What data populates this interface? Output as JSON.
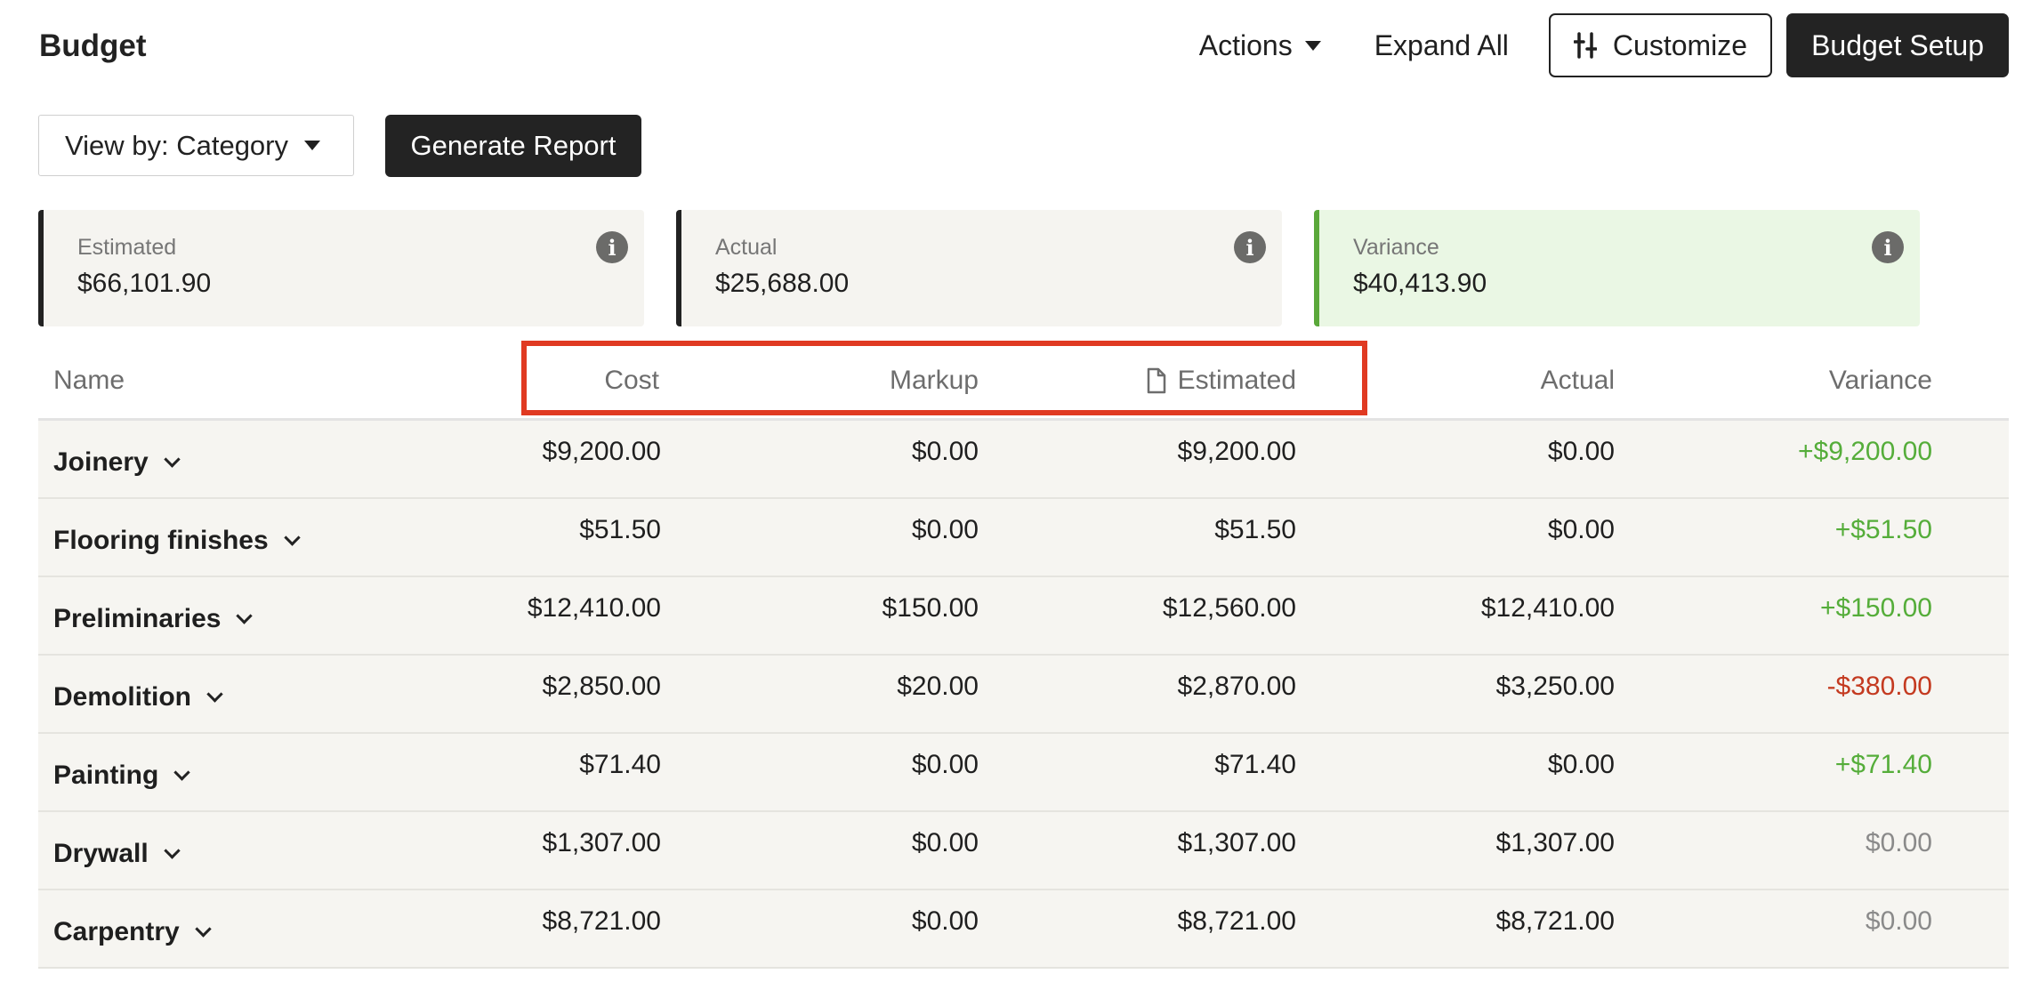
{
  "header": {
    "title": "Budget",
    "actions_label": "Actions",
    "expand_all_label": "Expand All",
    "customize_label": "Customize",
    "budget_setup_label": "Budget Setup"
  },
  "toolbar": {
    "view_by_label": "View by: Category",
    "generate_report_label": "Generate Report"
  },
  "summary": {
    "estimated": {
      "label": "Estimated",
      "value": "$66,101.90"
    },
    "actual": {
      "label": "Actual",
      "value": "$25,688.00"
    },
    "variance": {
      "label": "Variance",
      "value": "$40,413.90"
    }
  },
  "colors": {
    "positive": "#55ad3a",
    "negative": "#c43a20",
    "neutral": "#8a8a8a",
    "highlight_box": "#e03a22"
  },
  "table": {
    "columns": {
      "name": "Name",
      "cost": "Cost",
      "markup": "Markup",
      "estimated": "Estimated",
      "actual": "Actual",
      "variance": "Variance"
    },
    "rows": [
      {
        "name": "Joinery",
        "cost": "$9,200.00",
        "markup": "$0.00",
        "estimated": "$9,200.00",
        "actual": "$0.00",
        "variance": "+$9,200.00",
        "variance_status": "positive"
      },
      {
        "name": "Flooring finishes",
        "cost": "$51.50",
        "markup": "$0.00",
        "estimated": "$51.50",
        "actual": "$0.00",
        "variance": "+$51.50",
        "variance_status": "positive"
      },
      {
        "name": "Preliminaries",
        "cost": "$12,410.00",
        "markup": "$150.00",
        "estimated": "$12,560.00",
        "actual": "$12,410.00",
        "variance": "+$150.00",
        "variance_status": "positive"
      },
      {
        "name": "Demolition",
        "cost": "$2,850.00",
        "markup": "$20.00",
        "estimated": "$2,870.00",
        "actual": "$3,250.00",
        "variance": "-$380.00",
        "variance_status": "negative"
      },
      {
        "name": "Painting",
        "cost": "$71.40",
        "markup": "$0.00",
        "estimated": "$71.40",
        "actual": "$0.00",
        "variance": "+$71.40",
        "variance_status": "positive"
      },
      {
        "name": "Drywall",
        "cost": "$1,307.00",
        "markup": "$0.00",
        "estimated": "$1,307.00",
        "actual": "$1,307.00",
        "variance": "$0.00",
        "variance_status": "zero"
      },
      {
        "name": "Carpentry",
        "cost": "$8,721.00",
        "markup": "$0.00",
        "estimated": "$8,721.00",
        "actual": "$8,721.00",
        "variance": "$0.00",
        "variance_status": "zero"
      }
    ]
  }
}
